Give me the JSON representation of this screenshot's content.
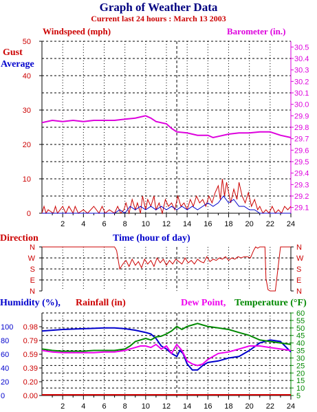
{
  "title": "Graph of Weather Data",
  "subtitle": "Current last 24 hours : March 13 2003",
  "colors": {
    "wind": "#cc0000",
    "avg": "#0000cc",
    "baro": "#dd00dd",
    "humid": "#0000cc",
    "rain": "#cc0000",
    "dew": "#ee00ee",
    "temp": "#008800"
  },
  "chart_data": [
    {
      "type": "line",
      "name": "wind-barometer",
      "left_title": "Windspeed (mph)",
      "right_title": "Barometer (in.)",
      "legend": [
        "Gust",
        "Average"
      ],
      "xlabel": "Time (hour of day)",
      "xlim": [
        0,
        24
      ],
      "x_ticks": [
        "2",
        "4",
        "6",
        "8",
        "10",
        "12",
        "14",
        "16",
        "18",
        "20",
        "22",
        "24"
      ],
      "ylim": [
        0,
        50
      ],
      "y_ticks": [
        "0",
        "10",
        "20",
        "30",
        "40",
        "50"
      ],
      "y2lim": [
        29.05,
        30.55
      ],
      "y2_ticks": [
        "29.1",
        "29.2",
        "29.3",
        "29.4",
        "29.5",
        "29.6",
        "29.7",
        "29.8",
        "29.9",
        "30.0",
        "30.1",
        "30.2",
        "30.3",
        "30.4",
        "30.5"
      ],
      "grid": true,
      "marker_hour": 13,
      "series": [
        {
          "name": "Barometer",
          "axis": "right",
          "x": [
            0,
            1,
            2,
            3,
            4,
            5,
            6,
            7,
            8,
            9,
            9.5,
            10,
            10.5,
            11,
            12,
            12.5,
            13,
            14,
            15,
            16,
            16.5,
            17,
            18,
            19,
            20,
            21,
            22,
            23,
            24
          ],
          "y": [
            29.84,
            29.86,
            29.85,
            29.86,
            29.85,
            29.86,
            29.86,
            29.86,
            29.87,
            29.88,
            29.89,
            29.9,
            29.88,
            29.85,
            29.83,
            29.79,
            29.76,
            29.75,
            29.73,
            29.73,
            29.71,
            29.72,
            29.74,
            29.75,
            29.75,
            29.76,
            29.76,
            29.73,
            29.71
          ]
        },
        {
          "name": "Gust",
          "axis": "left",
          "x": [
            0,
            0.2,
            0.4,
            0.6,
            1.1,
            1.3,
            1.5,
            2.0,
            2.3,
            2.6,
            3.0,
            3.2,
            3.5,
            4.0,
            4.4,
            5.0,
            5.5,
            5.8,
            6.1,
            6.5,
            7.0,
            7.3,
            7.6,
            7.9,
            8.1,
            8.4,
            8.7,
            9.0,
            9.2,
            9.5,
            9.7,
            10.0,
            10.2,
            10.5,
            10.8,
            11.0,
            11.3,
            11.6,
            11.9,
            12.2,
            12.5,
            12.8,
            13.1,
            13.4,
            13.7,
            14.0,
            14.3,
            14.6,
            14.9,
            15.2,
            15.5,
            15.8,
            16.1,
            16.4,
            16.7,
            17.0,
            17.2,
            17.4,
            17.6,
            17.8,
            18.0,
            18.2,
            18.5,
            18.8,
            19.0,
            19.3,
            19.6,
            19.9,
            20.2,
            20.5,
            20.8,
            21.0,
            21.3,
            21.6,
            21.9,
            22.2,
            22.5,
            22.8,
            23.1,
            23.4,
            23.7,
            24.0
          ],
          "y": [
            0,
            2,
            0,
            1,
            0,
            2,
            0,
            2,
            0,
            2,
            0,
            2,
            0,
            1,
            0,
            2,
            0,
            2,
            0,
            1,
            0,
            2,
            0,
            1,
            3,
            0,
            4,
            1,
            3,
            0,
            5,
            1,
            4,
            2,
            5,
            1,
            3,
            0,
            4,
            2,
            3,
            1,
            5,
            2,
            3,
            1,
            4,
            2,
            5,
            3,
            4,
            2,
            5,
            3,
            6,
            8,
            4,
            10,
            5,
            9,
            6,
            3,
            7,
            4,
            9,
            5,
            3,
            6,
            2,
            4,
            1,
            2,
            0,
            1,
            0,
            2,
            0,
            1,
            0,
            2,
            1,
            2
          ]
        },
        {
          "name": "Average",
          "axis": "left",
          "x": [
            0,
            1,
            2,
            3,
            4,
            5,
            6,
            7,
            7.5,
            8,
            8.5,
            9,
            9.5,
            10,
            10.5,
            11,
            11.5,
            12,
            12.5,
            13,
            13.5,
            14,
            14.5,
            15,
            15.5,
            16,
            16.5,
            17,
            17.5,
            18,
            18.5,
            19,
            19.5,
            20,
            20.5,
            21,
            21.5,
            22,
            22.5,
            23,
            23.5,
            24
          ],
          "y": [
            0,
            0,
            0,
            0,
            0,
            0,
            0,
            0,
            1,
            0,
            2,
            1,
            2,
            1,
            2,
            1,
            2,
            1,
            2,
            1,
            2,
            1,
            2,
            1,
            2,
            3,
            2,
            3,
            5,
            3,
            4,
            2,
            2,
            1,
            1,
            0,
            0,
            0,
            0,
            0,
            0,
            0
          ]
        }
      ]
    },
    {
      "type": "line",
      "name": "wind-direction",
      "label": "Direction",
      "y_ticks": [
        "N",
        "W",
        "S",
        "E",
        "N"
      ],
      "xlim": [
        0,
        24
      ],
      "marker_hour": 13,
      "series": [
        {
          "name": "Direction",
          "x": [
            0,
            2,
            3,
            4,
            5,
            6,
            7,
            7.2,
            7.5,
            7.8,
            8.1,
            8.4,
            8.7,
            9.0,
            9.3,
            9.6,
            9.9,
            10.2,
            10.5,
            10.8,
            11.1,
            11.4,
            11.7,
            12.0,
            12.3,
            12.6,
            12.9,
            13.2,
            13.5,
            13.8,
            14.1,
            14.4,
            14.7,
            15.0,
            15.3,
            15.6,
            15.9,
            16.2,
            16.5,
            16.8,
            17.1,
            17.4,
            17.7,
            18.0,
            18.3,
            18.6,
            18.9,
            19.2,
            19.5,
            19.8,
            20.1,
            20.4,
            20.6,
            20.8,
            21.0,
            21.2,
            21.4,
            21.5,
            21.6,
            21.8,
            22.0,
            22.5,
            23.0,
            23.5,
            24.0
          ],
          "y": [
            360,
            360,
            360,
            360,
            360,
            360,
            360,
            330,
            180,
            220,
            250,
            200,
            260,
            210,
            240,
            190,
            260,
            220,
            250,
            200,
            270,
            230,
            260,
            210,
            250,
            220,
            260,
            240,
            220,
            270,
            230,
            250,
            220,
            260,
            240,
            230,
            280,
            240,
            260,
            250,
            270,
            260,
            280,
            250,
            270,
            260,
            280,
            270,
            280,
            280,
            270,
            330,
            360,
            350,
            360,
            360,
            360,
            360,
            100,
            10,
            0,
            0,
            360,
            360,
            360
          ]
        }
      ]
    },
    {
      "type": "line",
      "name": "humidity-rain-temp",
      "humidity_label": "Humidity (%),",
      "rain_label": "Rainfall (in)",
      "dew_label": "Dew Point,",
      "temp_label": "Temperature (°F)",
      "humidity_ticks": [
        "0",
        "20",
        "40",
        "60",
        "80",
        "100"
      ],
      "rain_ticks": [
        "0.00",
        "0.20",
        "0.39",
        "0.59",
        "0.79",
        "0.98"
      ],
      "temp_ticks": [
        "5",
        "10",
        "15",
        "20",
        "25",
        "30",
        "35",
        "40",
        "45",
        "50",
        "55",
        "60"
      ],
      "xlim": [
        0,
        24
      ],
      "temp_lim": [
        5,
        60
      ],
      "marker_hour": 13,
      "series": [
        {
          "name": "Humidity",
          "axis": "temp",
          "x": [
            0,
            2,
            4,
            6,
            7,
            8,
            9,
            10,
            10.5,
            11,
            11.5,
            12,
            12.5,
            13,
            13.3,
            13.6,
            14,
            14.5,
            15,
            15.5,
            16,
            17,
            18,
            19,
            20,
            21,
            22,
            23,
            24
          ],
          "y": [
            48,
            49,
            49.5,
            50,
            50,
            49.5,
            48.5,
            47,
            46,
            43,
            38,
            36,
            33,
            31,
            35,
            33,
            26,
            22,
            22,
            25,
            27,
            28,
            30,
            31,
            35,
            40,
            42,
            41,
            34
          ]
        },
        {
          "name": "Temperature",
          "axis": "temp",
          "x": [
            0,
            1,
            2,
            3,
            4,
            5,
            6,
            7,
            8,
            8.5,
            9,
            9.5,
            10,
            10.5,
            11,
            11.5,
            12,
            12.5,
            13,
            13.5,
            14,
            14.5,
            15,
            15.5,
            16,
            17,
            18,
            19,
            20,
            21,
            22,
            23,
            24
          ],
          "y": [
            36,
            35,
            34.5,
            34.5,
            34.5,
            35,
            35,
            35,
            36,
            38,
            41,
            42,
            43,
            42,
            44,
            44.5,
            46,
            48,
            51,
            49,
            51,
            52,
            53,
            52,
            51,
            50,
            49,
            47,
            45,
            42,
            41,
            40,
            39
          ]
        },
        {
          "name": "Dew Point",
          "axis": "temp",
          "x": [
            0,
            1,
            2,
            3,
            4,
            5,
            6,
            7,
            8,
            9,
            9.5,
            10,
            10.5,
            11,
            11.5,
            12,
            12.5,
            13,
            13.5,
            14,
            14.5,
            15,
            15.5,
            16,
            17,
            18,
            19,
            20,
            21,
            22,
            23,
            24
          ],
          "y": [
            35,
            34,
            33.5,
            33.5,
            33.5,
            33.5,
            34,
            34,
            35,
            37,
            38,
            38,
            37,
            39,
            36,
            38,
            33,
            39,
            35,
            28,
            26,
            25,
            26,
            29,
            33,
            34,
            36,
            38,
            38,
            37,
            36,
            35
          ]
        }
      ]
    }
  ]
}
